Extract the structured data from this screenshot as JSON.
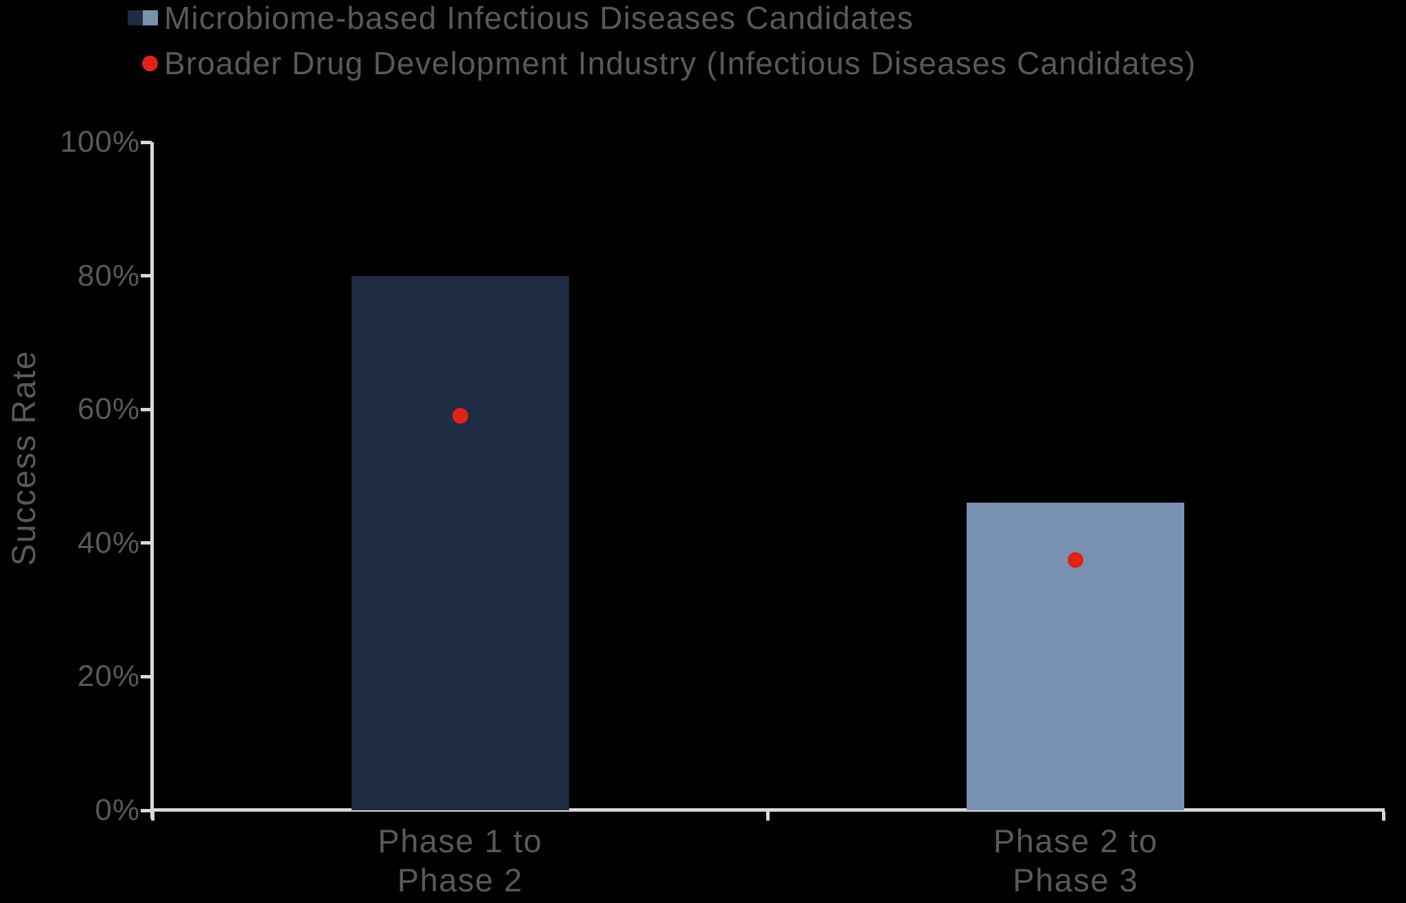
{
  "page": {
    "background": "#000000",
    "text_color": "#595959",
    "axis_color": "#D9D9D9"
  },
  "legend": {
    "entries": [
      {
        "label": "Microbiome-based Infectious Diseases Candidates",
        "marker": "split-square",
        "marker_colors": [
          "#1E2C44",
          "#7792B1"
        ]
      },
      {
        "label": "Broader Drug Development Industry (Infectious Diseases Candidates)",
        "marker": "dot",
        "marker_colors": [
          "#E32119"
        ]
      }
    ]
  },
  "chart_data": {
    "type": "bar",
    "title": "",
    "xlabel": "",
    "ylabel": "Success Rate",
    "ylim": [
      0,
      100
    ],
    "grid": false,
    "legend_position": "top-left",
    "categories": [
      {
        "lines": [
          "Phase 1 to",
          "Phase 2"
        ]
      },
      {
        "lines": [
          "Phase 2 to",
          "Phase 3"
        ]
      }
    ],
    "series": [
      {
        "name": "Microbiome-based Infectious Diseases Candidates",
        "type": "bar",
        "values": [
          80,
          46
        ],
        "bar_colors": [
          "#1E2C44",
          "#7792B1"
        ]
      },
      {
        "name": "Broader Drug Development Industry (Infectious Diseases Candidates)",
        "type": "scatter",
        "values": [
          59,
          37.5
        ],
        "color": "#E32119"
      }
    ],
    "yticks": [
      {
        "label": "0%",
        "value": 0
      },
      {
        "label": "20%",
        "value": 20
      },
      {
        "label": "40%",
        "value": 40
      },
      {
        "label": "60%",
        "value": 60
      },
      {
        "label": "80%",
        "value": 80
      },
      {
        "label": "100%",
        "value": 100
      }
    ]
  }
}
